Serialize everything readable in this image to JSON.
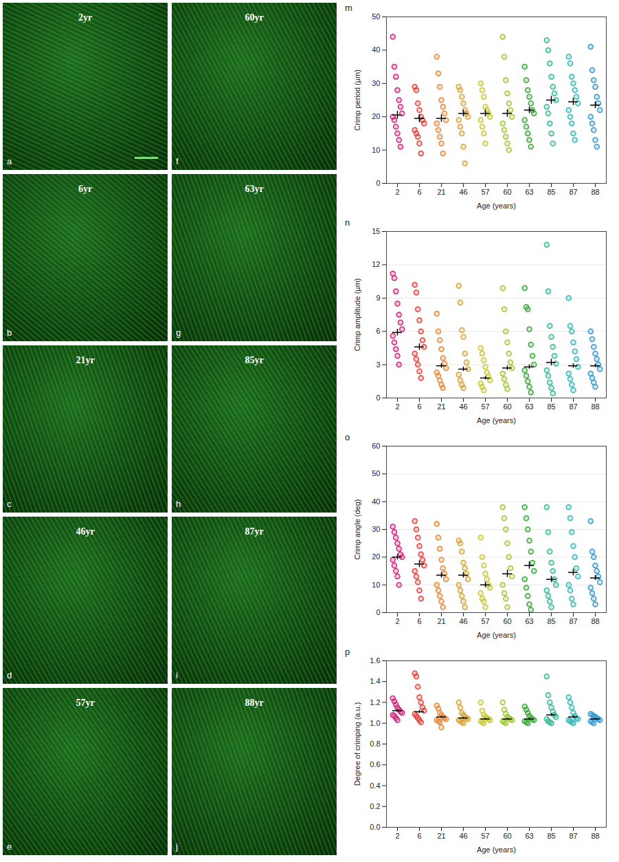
{
  "image_panels": [
    {
      "letter": "a",
      "label": "2yr"
    },
    {
      "letter": "b",
      "label": "6yr"
    },
    {
      "letter": "c",
      "label": "21yr"
    },
    {
      "letter": "d",
      "label": "46yr"
    },
    {
      "letter": "e",
      "label": "57yr"
    },
    {
      "letter": "f",
      "label": "60yr"
    },
    {
      "letter": "g",
      "label": "63yr"
    },
    {
      "letter": "h",
      "label": "85yr"
    },
    {
      "letter": "i",
      "label": "87yr"
    },
    {
      "letter": "j",
      "label": "88yr"
    }
  ],
  "chart_data": [
    {
      "type": "scatter",
      "letter": "m",
      "x_label": "Age (years)",
      "y_label": "Crimp period (µm)",
      "categories": [
        2,
        6,
        21,
        46,
        57,
        60,
        63,
        85,
        87,
        88
      ],
      "colors": [
        "#d4237a",
        "#e8413a",
        "#e8893a",
        "#d8a53a",
        "#c8c83a",
        "#a0c83a",
        "#3aa83a",
        "#3ab89a",
        "#3ab8b8",
        "#3a9ad0"
      ],
      "marker": "circle",
      "points": [
        [
          44,
          35,
          32,
          28,
          25,
          23,
          21,
          20,
          19,
          17,
          15,
          13,
          11
        ],
        [
          29,
          28,
          24,
          22,
          20,
          19,
          18,
          16,
          15,
          14,
          12,
          9
        ],
        [
          38,
          33,
          29,
          25,
          23,
          21,
          19,
          18,
          16,
          14,
          12,
          9
        ],
        [
          29,
          28,
          26,
          24,
          22,
          21,
          20,
          19,
          17,
          15,
          11,
          6
        ],
        [
          30,
          28,
          26,
          23,
          22,
          21,
          20,
          19,
          17,
          15,
          12
        ],
        [
          44,
          38,
          31,
          27,
          24,
          22,
          20,
          18,
          16,
          14,
          12,
          10
        ],
        [
          35,
          31,
          28,
          26,
          24,
          22,
          21,
          19,
          17,
          15,
          13,
          11
        ],
        [
          43,
          40,
          36,
          32,
          29,
          27,
          25,
          23,
          21,
          18,
          15,
          12
        ],
        [
          38,
          36,
          32,
          30,
          28,
          26,
          24,
          22,
          20,
          18,
          15,
          13
        ],
        [
          41,
          34,
          31,
          29,
          26,
          24,
          22,
          20,
          18,
          16,
          13,
          11
        ]
      ],
      "means": [
        20.5,
        19.5,
        19.5,
        21,
        21,
        21,
        22,
        25,
        24.5,
        23.5
      ],
      "errors": [
        1.2,
        1.2,
        1.1,
        1,
        1,
        1.1,
        1,
        1.2,
        1.1,
        1
      ],
      "ylim": [
        0,
        50
      ],
      "yticks": [
        0,
        10,
        20,
        30,
        40,
        50
      ],
      "grid": false
    },
    {
      "type": "scatter",
      "letter": "n",
      "x_label": "Age (years)",
      "y_label": "Crimp amplitude (µm)",
      "categories": [
        2,
        6,
        21,
        46,
        57,
        60,
        63,
        85,
        87,
        88
      ],
      "colors": [
        "#d4237a",
        "#e8413a",
        "#e8893a",
        "#d8a53a",
        "#c8c83a",
        "#a0c83a",
        "#3aa83a",
        "#3ab89a",
        "#3ab8b8",
        "#3a9ad0"
      ],
      "marker": "circle",
      "points": [
        [
          11.2,
          10.8,
          9.6,
          8.5,
          7.5,
          6.8,
          6.2,
          5.6,
          5,
          4.4,
          3.8,
          3
        ],
        [
          10.2,
          9.5,
          8,
          7,
          6,
          5.2,
          4.6,
          4,
          3.5,
          3,
          2.4,
          1.8
        ],
        [
          7.6,
          6,
          5.2,
          4.4,
          3.6,
          3.1,
          2.7,
          2.3,
          2,
          1.6,
          1.2,
          0.9
        ],
        [
          10.1,
          8.6,
          6.1,
          5.5,
          4,
          3.2,
          2.6,
          2.1,
          1.6,
          1.2,
          0.9
        ],
        [
          4.5,
          4,
          3.4,
          2.8,
          2.3,
          1.9,
          1.6,
          1.3,
          1,
          0.7
        ],
        [
          9.9,
          8,
          6,
          5,
          4,
          3.2,
          2.7,
          2.2,
          1.7,
          1.2,
          0.8
        ],
        [
          9.9,
          8.2,
          8,
          6.2,
          4.8,
          3.8,
          3,
          2.5,
          2,
          1.5,
          1,
          0.5
        ],
        [
          13.8,
          9.6,
          6.5,
          5.5,
          4.6,
          3.8,
          3.1,
          2.5,
          2,
          1.4,
          0.9,
          0.4
        ],
        [
          9,
          6.5,
          6,
          5,
          4.2,
          3.5,
          2.8,
          2.2,
          1.7,
          1.2,
          0.7
        ],
        [
          6,
          5.3,
          4.6,
          4,
          3.5,
          3,
          2.6,
          2.2,
          1.8,
          1.4,
          1
        ]
      ],
      "means": [
        5.9,
        4.6,
        2.9,
        2.6,
        1.8,
        2.7,
        2.8,
        3.2,
        2.9,
        2.9
      ],
      "errors": [
        0.3,
        0.3,
        0.2,
        0.2,
        0.15,
        0.2,
        0.2,
        0.3,
        0.2,
        0.15
      ],
      "ylim": [
        0,
        15
      ],
      "yticks": [
        0,
        3,
        6,
        9,
        12,
        15
      ],
      "grid": true
    },
    {
      "type": "scatter",
      "letter": "o",
      "x_label": "Age (years)",
      "y_label": "Crimp angle (deg)",
      "categories": [
        2,
        6,
        21,
        46,
        57,
        60,
        63,
        85,
        87,
        88
      ],
      "colors": [
        "#d4237a",
        "#e8413a",
        "#e8893a",
        "#d8a53a",
        "#c8c83a",
        "#a0c83a",
        "#3aa83a",
        "#3ab89a",
        "#3ab8b8",
        "#3a9ad0"
      ],
      "marker": "circle",
      "points": [
        [
          31,
          29,
          27,
          25,
          23,
          21,
          20,
          19,
          17,
          15,
          13,
          10
        ],
        [
          33,
          30,
          27,
          24,
          21,
          19,
          17,
          15,
          13,
          11,
          8,
          5
        ],
        [
          32,
          27,
          23,
          19,
          16,
          14,
          12,
          10,
          8,
          6,
          4,
          2
        ],
        [
          26,
          25,
          22,
          18,
          16,
          14,
          12,
          10,
          8,
          6,
          4,
          2
        ],
        [
          27,
          20,
          17,
          14,
          12,
          10,
          9,
          7,
          5,
          4,
          2
        ],
        [
          38,
          34,
          30,
          25,
          20,
          16,
          13,
          10,
          7,
          5,
          2
        ],
        [
          38,
          34,
          30,
          26,
          22,
          18,
          15,
          12,
          9,
          6,
          3,
          1
        ],
        [
          38,
          29,
          22,
          18,
          15,
          12,
          10,
          8,
          6,
          4,
          2
        ],
        [
          38,
          34,
          29,
          24,
          20,
          16,
          13,
          10,
          8,
          5,
          3
        ],
        [
          33,
          22,
          20,
          17,
          15,
          13,
          11,
          9,
          7,
          5,
          3
        ]
      ],
      "means": [
        20,
        17.5,
        13.5,
        13.5,
        10,
        14,
        17,
        12,
        14.5,
        12.5
      ],
      "errors": [
        1,
        1.2,
        1,
        1,
        1,
        1.3,
        1.3,
        1.1,
        1.2,
        0.9
      ],
      "ylim": [
        0,
        60
      ],
      "yticks": [
        0,
        10,
        20,
        30,
        40,
        50,
        60
      ],
      "grid": true
    },
    {
      "type": "scatter",
      "letter": "p",
      "x_label": "Age (years)",
      "y_label": "Degree of crimping (a.u.)",
      "categories": [
        2,
        6,
        21,
        46,
        57,
        60,
        63,
        85,
        87,
        88
      ],
      "colors": [
        "#d4237a",
        "#e8413a",
        "#e8893a",
        "#d8a53a",
        "#c8c83a",
        "#a0c83a",
        "#3aa83a",
        "#3ab89a",
        "#3ab8b8",
        "#3a9ad0"
      ],
      "marker": "circle",
      "points": [
        [
          1.24,
          1.21,
          1.18,
          1.15,
          1.13,
          1.11,
          1.1,
          1.08,
          1.07,
          1.05,
          1.03
        ],
        [
          1.48,
          1.45,
          1.35,
          1.25,
          1.2,
          1.15,
          1.12,
          1.09,
          1.07,
          1.05,
          1.03,
          1.01
        ],
        [
          1.17,
          1.14,
          1.1,
          1.08,
          1.06,
          1.05,
          1.04,
          1.03,
          1.02,
          1.01,
          0.96
        ],
        [
          1.2,
          1.15,
          1.1,
          1.08,
          1.06,
          1.05,
          1.04,
          1.03,
          1.02,
          1.01,
          1
        ],
        [
          1.2,
          1.12,
          1.08,
          1.06,
          1.05,
          1.04,
          1.03,
          1.02,
          1.01,
          1
        ],
        [
          1.2,
          1.13,
          1.09,
          1.06,
          1.05,
          1.04,
          1.03,
          1.02,
          1.01,
          1
        ],
        [
          1.16,
          1.13,
          1.1,
          1.07,
          1.05,
          1.04,
          1.03,
          1.02,
          1.01,
          1
        ],
        [
          1.45,
          1.27,
          1.2,
          1.15,
          1.11,
          1.08,
          1.06,
          1.04,
          1.02,
          1.01,
          1
        ],
        [
          1.25,
          1.2,
          1.15,
          1.1,
          1.07,
          1.05,
          1.04,
          1.03,
          1.02,
          1.01,
          1
        ],
        [
          1.09,
          1.08,
          1.07,
          1.06,
          1.05,
          1.04,
          1.03,
          1.02,
          1.01,
          1
        ]
      ],
      "means": [
        1.12,
        1.11,
        1.06,
        1.05,
        1.04,
        1.04,
        1.04,
        1.08,
        1.06,
        1.04
      ],
      "errors": [
        0.01,
        0.015,
        0.008,
        0.008,
        0.008,
        0.008,
        0.008,
        0.012,
        0.01,
        0.006
      ],
      "ylim": [
        0,
        1.6
      ],
      "yticks": [
        {
          "value": 0,
          "label": "0.0"
        },
        0.2,
        0.4,
        0.6,
        0.8,
        {
          "value": 1,
          "label": "1.0"
        },
        1.2,
        1.4,
        1.6
      ],
      "grid": false
    }
  ]
}
